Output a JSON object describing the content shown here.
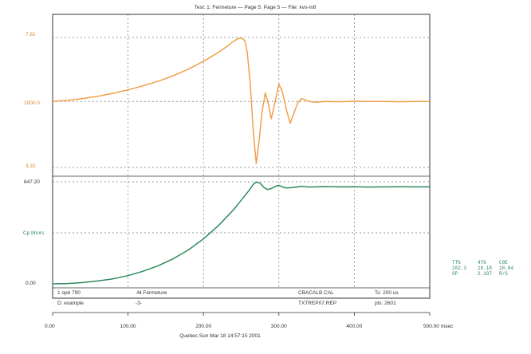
{
  "header": {
    "title": "Test: 1: Fermeture — Page 5:        Page 5 — File: kvs-m8"
  },
  "footer": {
    "text": "Quebec   Sun Mar 18 14:57:15 2001"
  },
  "colors": {
    "upper_trace": "#f0a04b",
    "lower_trace": "#2c8a5c",
    "grid": "#777777",
    "frame": "#333333"
  },
  "info_box": {
    "left_col": [
      "1 opé 790",
      "D: example"
    ],
    "middle_col": [
      "-M.Fermeture",
      "-3-"
    ],
    "right_files": [
      "CBACALB.CAL",
      "TXTREP07.REP"
    ],
    "far_right": [
      "Ts: 200 us",
      "pts: 2601"
    ]
  },
  "side_readout": {
    "rows": [
      [
        "TT%",
        "4T%",
        "C0E"
      ],
      [
        "202.3",
        "18.18",
        "18.84"
      ],
      [
        "SP",
        "2.197",
        "R/S"
      ]
    ]
  },
  "chart_data": [
    {
      "type": "line",
      "name": "upper",
      "title": "Test: 1: Fermeture — Page 5:        Page 5 — File: kvs-m8",
      "xlim": [
        0,
        500
      ],
      "xlabel": "msec",
      "x_ticks": [
        "0.00",
        "100.00",
        "200.00",
        "300.00",
        "400.00",
        "500.00 msec"
      ],
      "y_labels": {
        "top": "7.81",
        "mid": "1000.0",
        "bottom": "3.32"
      },
      "ylim": [
        3.32,
        7.81
      ],
      "baseline": 5.6,
      "grid": true,
      "series": [
        {
          "x": [
            0,
            10,
            20,
            30,
            40,
            50,
            60,
            70,
            80,
            90,
            100,
            110,
            120,
            130,
            140,
            150,
            160,
            170,
            180,
            190,
            200,
            210,
            220,
            230,
            240,
            245,
            250,
            255,
            258,
            262,
            266,
            270,
            274,
            278,
            282,
            286,
            290,
            295,
            300,
            305,
            310,
            315,
            320,
            325,
            330,
            340,
            350,
            360,
            380,
            400,
            420,
            440,
            460,
            480,
            500
          ],
          "y": [
            5.6,
            5.62,
            5.64,
            5.67,
            5.7,
            5.74,
            5.78,
            5.83,
            5.88,
            5.94,
            6.0,
            6.07,
            6.14,
            6.22,
            6.3,
            6.39,
            6.49,
            6.6,
            6.72,
            6.85,
            6.99,
            7.14,
            7.3,
            7.48,
            7.68,
            7.76,
            7.8,
            7.7,
            7.3,
            6.2,
            4.6,
            3.45,
            4.3,
            5.3,
            5.9,
            5.5,
            5.0,
            5.6,
            6.2,
            5.9,
            5.3,
            4.85,
            5.2,
            5.55,
            5.7,
            5.6,
            5.57,
            5.6,
            5.59,
            5.61,
            5.6,
            5.6,
            5.59,
            5.6,
            5.6
          ]
        }
      ]
    },
    {
      "type": "line",
      "name": "lower",
      "xlim": [
        0,
        500
      ],
      "y_labels": {
        "top": "647.20",
        "mid": "Cp bhors",
        "bottom": "0.00"
      },
      "ylim": [
        0,
        647.2
      ],
      "grid": true,
      "series": [
        {
          "x": [
            0,
            20,
            40,
            60,
            80,
            100,
            120,
            140,
            160,
            180,
            200,
            220,
            240,
            250,
            260,
            266,
            270,
            275,
            280,
            285,
            290,
            295,
            300,
            305,
            310,
            320,
            330,
            340,
            360,
            380,
            400,
            420,
            440,
            460,
            480,
            500
          ],
          "y": [
            0,
            2,
            8,
            18,
            32,
            52,
            80,
            115,
            160,
            215,
            285,
            370,
            470,
            530,
            590,
            630,
            645,
            638,
            612,
            598,
            604,
            618,
            625,
            614,
            608,
            612,
            618,
            614,
            617,
            615,
            616,
            614,
            615,
            616,
            615,
            615
          ]
        }
      ]
    }
  ]
}
